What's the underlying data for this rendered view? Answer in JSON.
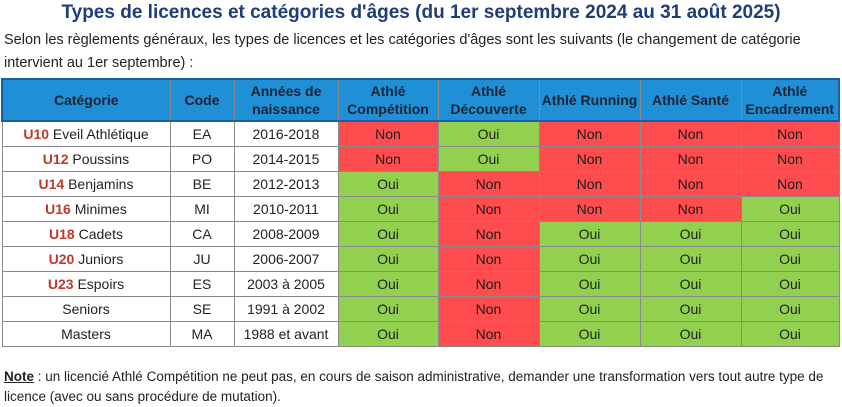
{
  "title": "Types de licences et catégories d'âges (du 1er septembre 2024 au 31 août 2025)",
  "intro": "Selon les règlements généraux, les types de licences et les catégories d'âges sont les suivants (le changement de catégorie intervient au 1er septembre) :",
  "table": {
    "headers": {
      "categorie": "Catégorie",
      "code": "Code",
      "annees": "Années de naissance",
      "competition": "Athlé Compétition",
      "decouverte": "Athlé Découverte",
      "running": "Athlé Running",
      "sante": "Athlé Santé",
      "encadrement": "Athlé Encadrement"
    },
    "rows": [
      {
        "code_cat": "U10",
        "name": "Eveil Athlétique",
        "code": "EA",
        "years": "2016-2018",
        "values": [
          "Non",
          "Oui",
          "Non",
          "Non",
          "Non"
        ]
      },
      {
        "code_cat": "U12",
        "name": "Poussins",
        "code": "PO",
        "years": "2014-2015",
        "values": [
          "Non",
          "Oui",
          "Non",
          "Non",
          "Non"
        ]
      },
      {
        "code_cat": "U14",
        "name": "Benjamins",
        "code": "BE",
        "years": "2012-2013",
        "values": [
          "Oui",
          "Non",
          "Non",
          "Non",
          "Non"
        ]
      },
      {
        "code_cat": "U16",
        "name": "Minimes",
        "code": "MI",
        "years": "2010-2011",
        "values": [
          "Oui",
          "Non",
          "Non",
          "Non",
          "Oui"
        ]
      },
      {
        "code_cat": "U18",
        "name": "Cadets",
        "code": "CA",
        "years": "2008-2009",
        "values": [
          "Oui",
          "Non",
          "Oui",
          "Oui",
          "Oui"
        ]
      },
      {
        "code_cat": "U20",
        "name": "Juniors",
        "code": "JU",
        "years": "2006-2007",
        "values": [
          "Oui",
          "Non",
          "Oui",
          "Oui",
          "Oui"
        ]
      },
      {
        "code_cat": "U23",
        "name": "Espoirs",
        "code": "ES",
        "years": "2003 à 2005",
        "values": [
          "Oui",
          "Non",
          "Oui",
          "Oui",
          "Oui"
        ]
      },
      {
        "code_cat": "",
        "name": "Seniors",
        "code": "SE",
        "years": "1991 à 2002",
        "values": [
          "Oui",
          "Non",
          "Oui",
          "Oui",
          "Oui"
        ]
      },
      {
        "code_cat": "",
        "name": "Masters",
        "code": "MA",
        "years": "1988 et avant",
        "values": [
          "Oui",
          "Non",
          "Oui",
          "Oui",
          "Oui"
        ]
      }
    ]
  },
  "note": {
    "label": "Note",
    "text": " : un licencié Athlé Compétition ne peut pas, en cours de saison administrative, demander une transformation vers tout autre type de licence (avec ou sans procédure de mutation)."
  },
  "colors": {
    "header_bg": "#1f8fd6",
    "title": "#1f3d7a",
    "oui": "#92d050",
    "non": "#ff4d4f",
    "category_code": "#c0392b"
  }
}
